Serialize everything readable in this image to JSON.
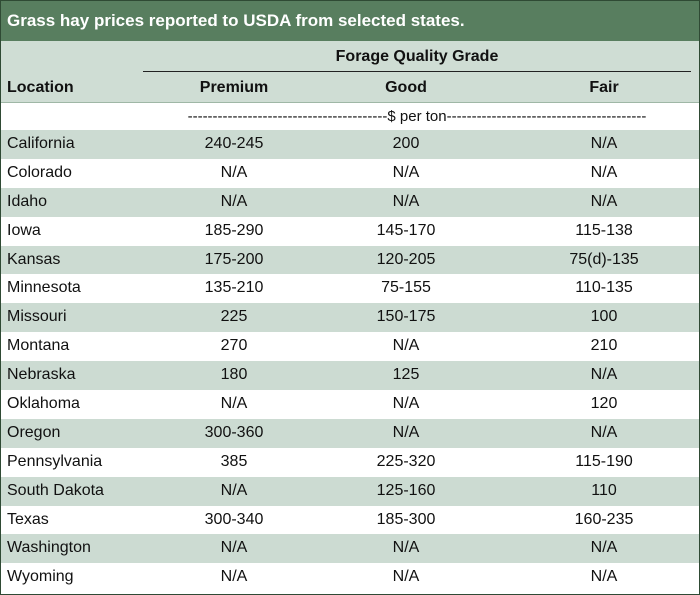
{
  "title": "Grass hay prices reported to USDA from selected states.",
  "header": {
    "group_label": "Forage Quality Grade",
    "location_label": "Location",
    "columns": [
      "Premium",
      "Good",
      "Fair"
    ]
  },
  "units": "----------------------------------------$ per ton----------------------------------------",
  "rows": [
    {
      "location": "California",
      "premium": "240-245",
      "good": "200",
      "fair": "N/A"
    },
    {
      "location": "Colorado",
      "premium": "N/A",
      "good": "N/A",
      "fair": "N/A"
    },
    {
      "location": "Idaho",
      "premium": "N/A",
      "good": "N/A",
      "fair": "N/A"
    },
    {
      "location": "Iowa",
      "premium": "185-290",
      "good": "145-170",
      "fair": "115-138"
    },
    {
      "location": "Kansas",
      "premium": "175-200",
      "good": "120-205",
      "fair": "75(d)-135"
    },
    {
      "location": "Minnesota",
      "premium": "135-210",
      "good": "75-155",
      "fair": "110-135"
    },
    {
      "location": "Missouri",
      "premium": "225",
      "good": "150-175",
      "fair": "100"
    },
    {
      "location": "Montana",
      "premium": "270",
      "good": "N/A",
      "fair": "210"
    },
    {
      "location": "Nebraska",
      "premium": "180",
      "good": "125",
      "fair": "N/A"
    },
    {
      "location": "Oklahoma",
      "premium": "N/A",
      "good": "N/A",
      "fair": "120"
    },
    {
      "location": "Oregon",
      "premium": "300-360",
      "good": "N/A",
      "fair": "N/A"
    },
    {
      "location": "Pennsylvania",
      "premium": "385",
      "good": "225-320",
      "fair": "115-190"
    },
    {
      "location": "South Dakota",
      "premium": "N/A",
      "good": "125-160",
      "fair": "110"
    },
    {
      "location": "Texas",
      "premium": "300-340",
      "good": "185-300",
      "fair": "160-235"
    },
    {
      "location": "Washington",
      "premium": "N/A",
      "good": "N/A",
      "fair": "N/A"
    },
    {
      "location": "Wyoming",
      "premium": "N/A",
      "good": "N/A",
      "fair": "N/A"
    }
  ],
  "colors": {
    "title_bar": "#587e5f",
    "shade": "#ccdbd2",
    "header": "#cfddd4"
  }
}
